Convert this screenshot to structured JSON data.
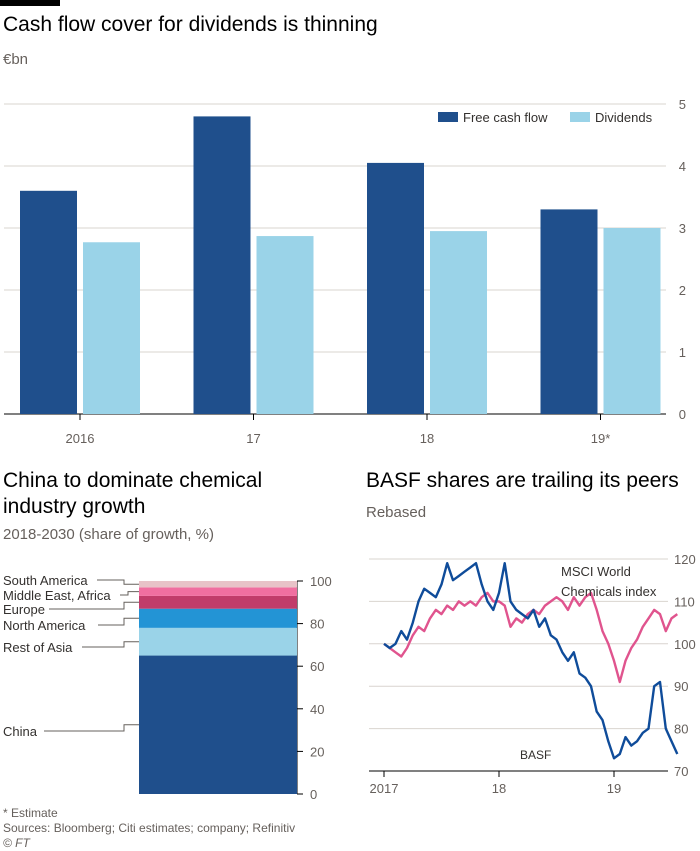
{
  "chart_data": [
    {
      "type": "bar",
      "title": "Cash flow cover for dividends is thinning",
      "subtitle": "€bn",
      "categories": [
        "2016",
        "17",
        "18",
        "19*"
      ],
      "series": [
        {
          "name": "Free cash flow",
          "color": "#1f4f8c",
          "values": [
            3.6,
            4.8,
            4.05,
            3.3
          ]
        },
        {
          "name": "Dividends",
          "color": "#9ad3e8",
          "values": [
            2.77,
            2.87,
            2.95,
            3.0
          ]
        }
      ],
      "ylim": [
        0,
        5
      ],
      "yticks": [
        0,
        1,
        2,
        3,
        4,
        5
      ],
      "legend": "top-right"
    },
    {
      "type": "bar",
      "title_lines": [
        "China to dominate chemical",
        "industry growth"
      ],
      "subtitle": "2018-2030 (share of growth, %)",
      "stacked": true,
      "segments": [
        {
          "name": "China",
          "value": 65,
          "color": "#1f4f8c"
        },
        {
          "name": "Rest of Asia",
          "value": 13,
          "color": "#9ad3e8"
        },
        {
          "name": "North America",
          "value": 9,
          "color": "#2394d5"
        },
        {
          "name": "Europe",
          "value": 6,
          "color": "#c13c6a"
        },
        {
          "name": "Middle East, Africa",
          "value": 4,
          "color": "#f06fa0"
        },
        {
          "name": "South America",
          "value": 3,
          "color": "#e8c3c8"
        }
      ],
      "ylim": [
        0,
        100
      ],
      "yticks": [
        0,
        20,
        40,
        60,
        80,
        100
      ]
    },
    {
      "type": "line",
      "title": "BASF shares are trailing its peers",
      "subtitle": "Rebased",
      "xlim": [
        2017,
        2019.6
      ],
      "xticks": [
        {
          "v": 2017,
          "label": "2017"
        },
        {
          "v": 2018,
          "label": "18"
        },
        {
          "v": 2019,
          "label": "19"
        }
      ],
      "ylim": [
        70,
        120
      ],
      "yticks": [
        70,
        80,
        90,
        100,
        110,
        120
      ],
      "series": [
        {
          "name": "MSCI World Chemicals index",
          "label_lines": [
            "MSCI World",
            "Chemicals index"
          ],
          "color": "#e0548e",
          "x": [
            2017.0,
            2017.05,
            2017.1,
            2017.15,
            2017.2,
            2017.25,
            2017.3,
            2017.35,
            2017.4,
            2017.45,
            2017.5,
            2017.55,
            2017.6,
            2017.65,
            2017.7,
            2017.75,
            2017.8,
            2017.85,
            2017.9,
            2017.95,
            2018.0,
            2018.05,
            2018.1,
            2018.15,
            2018.2,
            2018.25,
            2018.3,
            2018.35,
            2018.4,
            2018.45,
            2018.5,
            2018.55,
            2018.6,
            2018.65,
            2018.7,
            2018.75,
            2018.8,
            2018.85,
            2018.9,
            2018.95,
            2019.0,
            2019.05,
            2019.1,
            2019.15,
            2019.2,
            2019.25,
            2019.3,
            2019.35,
            2019.4,
            2019.45,
            2019.5,
            2019.55
          ],
          "values": [
            100,
            99,
            98,
            97,
            99,
            102,
            104,
            103,
            106,
            108,
            107,
            109,
            108,
            110,
            109,
            110,
            109,
            111,
            112,
            110,
            110,
            109,
            104,
            106,
            105,
            107,
            108,
            107,
            109,
            110,
            111,
            110,
            108,
            111,
            109,
            111,
            112,
            108,
            103,
            100,
            96,
            91,
            96,
            99,
            101,
            104,
            106,
            108,
            107,
            103,
            106,
            107
          ]
        },
        {
          "name": "BASF",
          "label_lines": [
            "BASF"
          ],
          "color": "#0f4c9a",
          "x": [
            2017.0,
            2017.05,
            2017.1,
            2017.15,
            2017.2,
            2017.25,
            2017.3,
            2017.35,
            2017.4,
            2017.45,
            2017.5,
            2017.55,
            2017.6,
            2017.65,
            2017.7,
            2017.75,
            2017.8,
            2017.85,
            2017.9,
            2017.95,
            2018.0,
            2018.05,
            2018.1,
            2018.15,
            2018.2,
            2018.25,
            2018.3,
            2018.35,
            2018.4,
            2018.45,
            2018.5,
            2018.55,
            2018.6,
            2018.65,
            2018.7,
            2018.75,
            2018.8,
            2018.85,
            2018.9,
            2018.95,
            2019.0,
            2019.05,
            2019.1,
            2019.15,
            2019.2,
            2019.25,
            2019.3,
            2019.35,
            2019.4,
            2019.45,
            2019.5,
            2019.55
          ],
          "values": [
            100,
            99,
            100,
            103,
            101,
            105,
            110,
            113,
            112,
            111,
            114,
            119,
            115,
            116,
            117,
            118,
            119,
            114,
            110,
            108,
            112,
            119,
            110,
            108,
            107,
            106,
            108,
            104,
            106,
            102,
            101,
            98,
            96,
            98,
            93,
            92,
            90,
            84,
            82,
            77,
            73,
            74,
            78,
            76,
            77,
            79,
            80,
            90,
            91,
            80,
            77,
            74
          ]
        }
      ]
    }
  ],
  "footer": {
    "note": "* Estimate",
    "sources": "Sources: Bloomberg; Citi estimates; company; Refinitiv",
    "credit": "© FT"
  }
}
